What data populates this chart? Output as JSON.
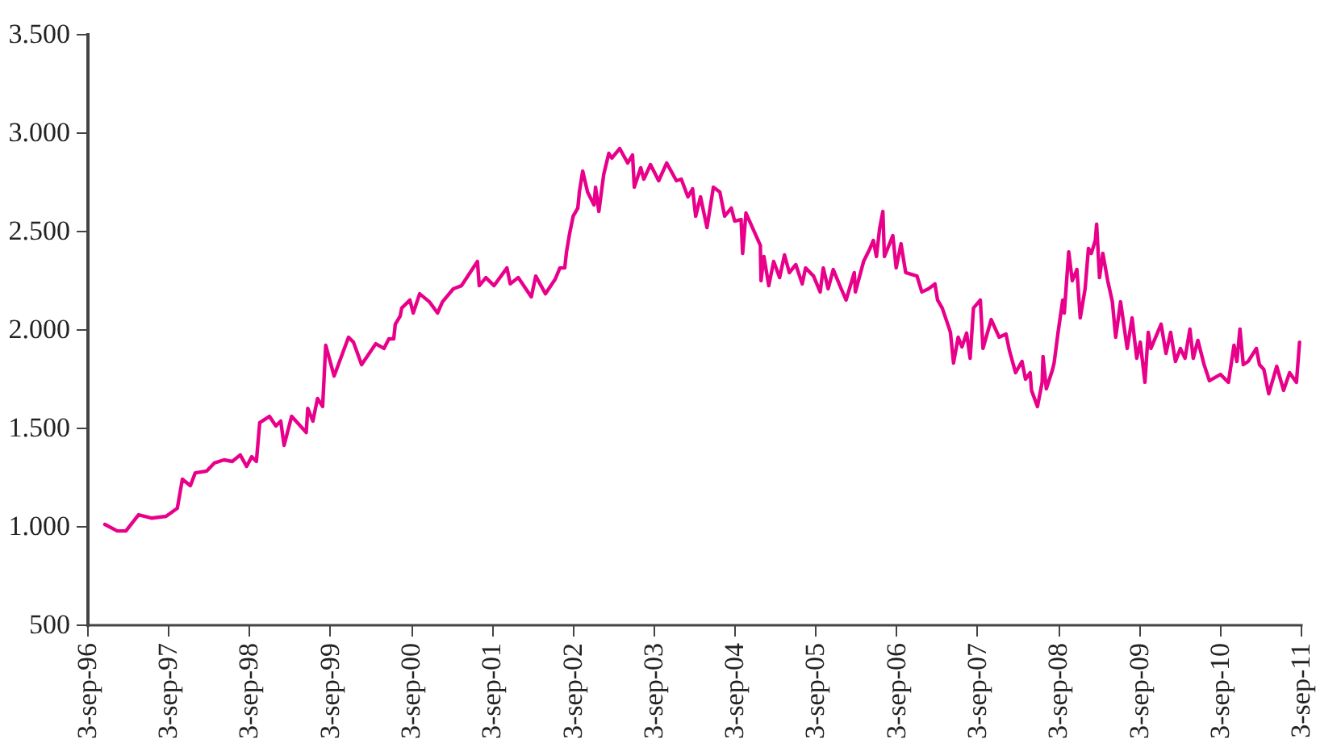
{
  "chart_data": {
    "type": "line",
    "xlim": [
      "1996-09-03",
      "2011-09-03"
    ],
    "ylim": [
      500,
      3500
    ],
    "xticks": [
      {
        "value": "1996-09-03",
        "label": "3-sep-96"
      },
      {
        "value": "1997-09-03",
        "label": "3-sep-97"
      },
      {
        "value": "1998-09-03",
        "label": "3-sep-98"
      },
      {
        "value": "1999-09-03",
        "label": "3-sep-99"
      },
      {
        "value": "2000-09-03",
        "label": "3-sep-00"
      },
      {
        "value": "2001-09-03",
        "label": "3-sep-01"
      },
      {
        "value": "2002-09-03",
        "label": "3-sep-02"
      },
      {
        "value": "2003-09-03",
        "label": "3-sep-03"
      },
      {
        "value": "2004-09-03",
        "label": "3-sep-04"
      },
      {
        "value": "2005-09-03",
        "label": "3-sep-05"
      },
      {
        "value": "2006-09-03",
        "label": "3-sep-06"
      },
      {
        "value": "2007-09-03",
        "label": "3-sep-07"
      },
      {
        "value": "2008-09-03",
        "label": "3-sep-08"
      },
      {
        "value": "2009-09-03",
        "label": "3-sep-09"
      },
      {
        "value": "2010-09-03",
        "label": "3-sep-10"
      },
      {
        "value": "2011-09-03",
        "label": "3-sep-11"
      }
    ],
    "yticks": [
      500,
      {
        "value": 1000,
        "label": "1.000"
      },
      {
        "value": 1500,
        "label": "1.500"
      },
      {
        "value": 2000,
        "label": "2.000"
      },
      {
        "value": 2500,
        "label": "2.500"
      },
      {
        "value": 3000,
        "label": "3.000"
      },
      {
        "value": 3500,
        "label": "3.500"
      }
    ],
    "grid": false,
    "marker": "none",
    "line_style": "solid",
    "x": [
      "1996-11-22",
      "1997-01-17",
      "1997-02-25",
      "1997-04-23",
      "1997-06-20",
      "1997-08-25",
      "1997-10-15",
      "1997-11-07",
      "1997-12-13",
      "1998-01-04",
      "1998-02-24",
      "1998-03-31",
      "1998-05-14",
      "1998-06-20",
      "1998-07-26",
      "1998-08-24",
      "1998-09-16",
      "1998-10-07",
      "1998-10-22",
      "1998-12-05",
      "1999-01-03",
      "1999-01-25",
      "1999-02-09",
      "1999-03-15",
      "1999-05-20",
      "1999-05-27",
      "1999-06-19",
      "1999-07-10",
      "1999-08-02",
      "1999-08-16",
      "1999-09-23",
      "1999-11-27",
      "1999-12-19",
      "2000-01-25",
      "2000-03-29",
      "2000-05-05",
      "2000-05-27",
      "2000-06-18",
      "2000-06-25",
      "2000-07-17",
      "2000-07-24",
      "2000-08-30",
      "2000-09-14",
      "2000-10-13",
      "2000-11-26",
      "2001-01-02",
      "2001-01-24",
      "2001-03-14",
      "2001-04-20",
      "2001-07-01",
      "2001-07-09",
      "2001-08-08",
      "2001-09-14",
      "2001-11-11",
      "2001-11-26",
      "2002-01-01",
      "2002-03-01",
      "2002-03-21",
      "2002-05-04",
      "2002-06-17",
      "2002-07-08",
      "2002-07-30",
      "2002-08-07",
      "2002-08-22",
      "2002-09-06",
      "2002-09-27",
      "2002-10-04",
      "2002-10-19",
      "2002-11-10",
      "2002-12-09",
      "2002-12-16",
      "2002-12-31",
      "2003-01-22",
      "2003-02-14",
      "2003-02-28",
      "2003-04-04",
      "2003-05-10",
      "2003-06-01",
      "2003-06-09",
      "2003-07-08",
      "2003-07-22",
      "2003-08-21",
      "2003-09-27",
      "2003-11-02",
      "2003-12-16",
      "2004-01-07",
      "2004-02-06",
      "2004-02-27",
      "2004-03-12",
      "2004-04-03",
      "2004-05-02",
      "2004-05-31",
      "2004-06-29",
      "2004-07-21",
      "2004-08-20",
      "2004-09-04",
      "2004-10-03",
      "2004-10-10",
      "2004-10-25",
      "2004-12-29",
      "2005-01-01",
      "2005-01-14",
      "2005-02-05",
      "2005-02-27",
      "2005-03-26",
      "2005-04-17",
      "2005-05-09",
      "2005-06-07",
      "2005-07-06",
      "2005-07-21",
      "2005-08-26",
      "2005-09-25",
      "2005-10-09",
      "2005-10-31",
      "2005-11-23",
      "2005-12-29",
      "2006-01-20",
      "2006-02-26",
      "2006-03-03",
      "2006-04-09",
      "2006-05-08",
      "2006-05-23",
      "2006-06-06",
      "2006-06-21",
      "2006-07-05",
      "2006-07-12",
      "2006-08-19",
      "2006-09-03",
      "2006-09-25",
      "2006-10-16",
      "2006-12-06",
      "2006-12-28",
      "2007-01-27",
      "2007-02-25",
      "2007-03-09",
      "2007-03-30",
      "2007-04-24",
      "2007-05-06",
      "2007-05-20",
      "2007-06-10",
      "2007-06-27",
      "2007-07-18",
      "2007-08-03",
      "2007-08-18",
      "2007-09-18",
      "2007-09-30",
      "2007-11-06",
      "2007-12-12",
      "2008-01-12",
      "2008-01-27",
      "2008-02-24",
      "2008-03-24",
      "2008-04-09",
      "2008-04-30",
      "2008-05-06",
      "2008-06-02",
      "2008-06-23",
      "2008-06-27",
      "2008-07-12",
      "2008-08-09",
      "2008-08-16",
      "2008-09-03",
      "2008-09-24",
      "2008-10-01",
      "2008-10-21",
      "2008-11-06",
      "2008-11-27",
      "2008-12-12",
      "2009-01-03",
      "2009-01-18",
      "2009-01-31",
      "2009-02-18",
      "2009-02-24",
      "2009-03-09",
      "2009-03-24",
      "2009-04-15",
      "2009-05-06",
      "2009-05-21",
      "2009-06-12",
      "2009-07-12",
      "2009-08-03",
      "2009-08-24",
      "2009-09-09",
      "2009-09-30",
      "2009-10-15",
      "2009-10-27",
      "2009-12-12",
      "2010-01-03",
      "2010-01-24",
      "2010-02-15",
      "2010-03-09",
      "2010-03-30",
      "2010-04-21",
      "2010-05-06",
      "2010-05-27",
      "2010-06-24",
      "2010-07-18",
      "2010-09-06",
      "2010-10-12",
      "2010-11-06",
      "2010-11-19",
      "2010-12-03",
      "2010-12-18",
      "2011-01-09",
      "2011-02-15",
      "2011-03-01",
      "2011-03-21",
      "2011-04-12",
      "2011-05-18",
      "2011-06-18",
      "2011-07-15",
      "2011-08-15",
      "2011-08-29"
    ],
    "series": [
      {
        "color": "#e8008a",
        "values": [
          1008,
          975,
          975,
          1057,
          1040,
          1049,
          1090,
          1238,
          1205,
          1270,
          1279,
          1320,
          1336,
          1328,
          1361,
          1303,
          1352,
          1328,
          1525,
          1557,
          1508,
          1533,
          1410,
          1557,
          1475,
          1598,
          1533,
          1648,
          1607,
          1918,
          1762,
          1959,
          1934,
          1820,
          1926,
          1902,
          1951,
          1951,
          2025,
          2066,
          2107,
          2148,
          2082,
          2180,
          2139,
          2082,
          2139,
          2205,
          2221,
          2344,
          2221,
          2262,
          2221,
          2311,
          2230,
          2262,
          2164,
          2270,
          2180,
          2254,
          2311,
          2311,
          2393,
          2492,
          2574,
          2615,
          2697,
          2803,
          2697,
          2631,
          2721,
          2598,
          2787,
          2893,
          2869,
          2918,
          2844,
          2885,
          2721,
          2820,
          2762,
          2836,
          2754,
          2844,
          2754,
          2762,
          2672,
          2713,
          2574,
          2672,
          2516,
          2721,
          2697,
          2574,
          2615,
          2549,
          2557,
          2385,
          2590,
          2426,
          2246,
          2369,
          2221,
          2344,
          2262,
          2377,
          2287,
          2328,
          2230,
          2311,
          2270,
          2189,
          2311,
          2205,
          2303,
          2205,
          2148,
          2287,
          2189,
          2344,
          2410,
          2451,
          2369,
          2516,
          2598,
          2369,
          2475,
          2311,
          2434,
          2287,
          2270,
          2189,
          2205,
          2230,
          2148,
          2107,
          2025,
          1984,
          1828,
          1959,
          1910,
          1980,
          1852,
          2107,
          2148,
          1902,
          2049,
          1959,
          1975,
          1893,
          1779,
          1836,
          1746,
          1779,
          1689,
          1607,
          1730,
          1861,
          1697,
          1795,
          1828,
          1984,
          2148,
          2082,
          2393,
          2246,
          2303,
          2057,
          2205,
          2410,
          2385,
          2451,
          2533,
          2262,
          2385,
          2246,
          2139,
          1959,
          2139,
          1902,
          2057,
          1852,
          1934,
          1730,
          1984,
          1902,
          2025,
          1877,
          1984,
          1836,
          1902,
          1852,
          2000,
          1852,
          1943,
          1820,
          1738,
          1770,
          1730,
          1918,
          1836,
          2000,
          1820,
          1836,
          1902,
          1820,
          1795,
          1672,
          1811,
          1689,
          1779,
          1730,
          1934
        ]
      }
    ]
  }
}
